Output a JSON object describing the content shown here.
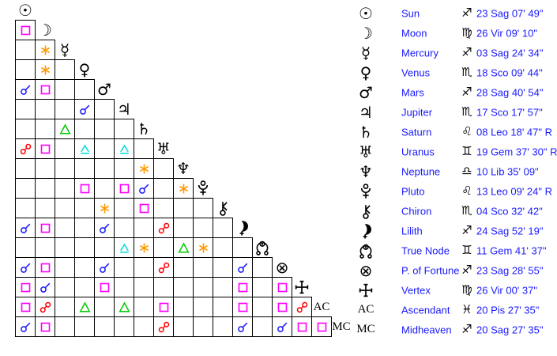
{
  "app": {
    "background": "#ffffff",
    "grid_line_color": "#000000",
    "text_color": "#1a1aff"
  },
  "aspect_types": {
    "conjunction": {
      "color": "#1a1aff"
    },
    "opposition": {
      "color": "#ff0000"
    },
    "square": {
      "color": "#ff00ff"
    },
    "trine": {
      "color": "#00cc00"
    },
    "sextile": {
      "color": "#ff9900"
    },
    "quincunx": {
      "color": "#00dde0"
    }
  },
  "grid": {
    "planets": [
      "sun",
      "moon",
      "mercury",
      "venus",
      "mars",
      "jupiter",
      "saturn",
      "uranus",
      "neptune",
      "pluto",
      "chiron",
      "lilith",
      "true-node",
      "p-of-fortune",
      "vertex",
      "ac",
      "mc"
    ],
    "aspects": [
      {
        "row": 1,
        "col": 0,
        "type": "square"
      },
      {
        "row": 2,
        "col": 1,
        "type": "sextile"
      },
      {
        "row": 3,
        "col": 1,
        "type": "sextile"
      },
      {
        "row": 4,
        "col": 0,
        "type": "conjunction"
      },
      {
        "row": 4,
        "col": 1,
        "type": "square"
      },
      {
        "row": 5,
        "col": 3,
        "type": "conjunction"
      },
      {
        "row": 6,
        "col": 2,
        "type": "trine"
      },
      {
        "row": 7,
        "col": 0,
        "type": "opposition"
      },
      {
        "row": 7,
        "col": 1,
        "type": "square"
      },
      {
        "row": 7,
        "col": 3,
        "type": "quincunx"
      },
      {
        "row": 7,
        "col": 5,
        "type": "quincunx"
      },
      {
        "row": 8,
        "col": 6,
        "type": "sextile"
      },
      {
        "row": 9,
        "col": 3,
        "type": "square"
      },
      {
        "row": 9,
        "col": 5,
        "type": "square"
      },
      {
        "row": 9,
        "col": 6,
        "type": "conjunction"
      },
      {
        "row": 9,
        "col": 8,
        "type": "sextile"
      },
      {
        "row": 10,
        "col": 4,
        "type": "sextile"
      },
      {
        "row": 10,
        "col": 6,
        "type": "square"
      },
      {
        "row": 11,
        "col": 0,
        "type": "conjunction"
      },
      {
        "row": 11,
        "col": 1,
        "type": "square"
      },
      {
        "row": 11,
        "col": 4,
        "type": "conjunction"
      },
      {
        "row": 11,
        "col": 7,
        "type": "opposition"
      },
      {
        "row": 12,
        "col": 5,
        "type": "quincunx"
      },
      {
        "row": 12,
        "col": 6,
        "type": "sextile"
      },
      {
        "row": 12,
        "col": 8,
        "type": "trine"
      },
      {
        "row": 12,
        "col": 9,
        "type": "sextile"
      },
      {
        "row": 13,
        "col": 0,
        "type": "conjunction"
      },
      {
        "row": 13,
        "col": 1,
        "type": "square"
      },
      {
        "row": 13,
        "col": 4,
        "type": "conjunction"
      },
      {
        "row": 13,
        "col": 7,
        "type": "opposition"
      },
      {
        "row": 13,
        "col": 11,
        "type": "conjunction"
      },
      {
        "row": 14,
        "col": 0,
        "type": "square"
      },
      {
        "row": 14,
        "col": 1,
        "type": "conjunction"
      },
      {
        "row": 14,
        "col": 4,
        "type": "square"
      },
      {
        "row": 14,
        "col": 11,
        "type": "square"
      },
      {
        "row": 14,
        "col": 13,
        "type": "square"
      },
      {
        "row": 15,
        "col": 0,
        "type": "square"
      },
      {
        "row": 15,
        "col": 1,
        "type": "opposition"
      },
      {
        "row": 15,
        "col": 3,
        "type": "trine"
      },
      {
        "row": 15,
        "col": 5,
        "type": "trine"
      },
      {
        "row": 15,
        "col": 7,
        "type": "square"
      },
      {
        "row": 15,
        "col": 11,
        "type": "square"
      },
      {
        "row": 15,
        "col": 13,
        "type": "square"
      },
      {
        "row": 15,
        "col": 14,
        "type": "opposition"
      },
      {
        "row": 16,
        "col": 0,
        "type": "conjunction"
      },
      {
        "row": 16,
        "col": 1,
        "type": "square"
      },
      {
        "row": 16,
        "col": 7,
        "type": "opposition"
      },
      {
        "row": 16,
        "col": 11,
        "type": "conjunction"
      },
      {
        "row": 16,
        "col": 13,
        "type": "conjunction"
      },
      {
        "row": 16,
        "col": 14,
        "type": "square"
      },
      {
        "row": 16,
        "col": 15,
        "type": "square"
      }
    ]
  },
  "legend": {
    "rows": [
      {
        "icon": "sun",
        "name": "Sun",
        "sign": "sag",
        "position": "23 Sag 07' 49\""
      },
      {
        "icon": "moon",
        "name": "Moon",
        "sign": "vir",
        "position": "26 Vir 09' 10\""
      },
      {
        "icon": "mercury",
        "name": "Mercury",
        "sign": "sag",
        "position": "03 Sag 24' 34\""
      },
      {
        "icon": "venus",
        "name": "Venus",
        "sign": "sco",
        "position": "18 Sco 09' 44\""
      },
      {
        "icon": "mars",
        "name": "Mars",
        "sign": "sag",
        "position": "28 Sag 40' 54\""
      },
      {
        "icon": "jupiter",
        "name": "Jupiter",
        "sign": "sco",
        "position": "17 Sco 17' 57\""
      },
      {
        "icon": "saturn",
        "name": "Saturn",
        "sign": "leo",
        "position": "08 Leo 18' 47\" R"
      },
      {
        "icon": "uranus",
        "name": "Uranus",
        "sign": "gem",
        "position": "19 Gem 37' 30\" R"
      },
      {
        "icon": "neptune",
        "name": "Neptune",
        "sign": "lib",
        "position": "10 Lib 35' 09\""
      },
      {
        "icon": "pluto",
        "name": "Pluto",
        "sign": "leo",
        "position": "13 Leo 09' 24\" R"
      },
      {
        "icon": "chiron",
        "name": "Chiron",
        "sign": "sco",
        "position": "04 Sco 32' 42\""
      },
      {
        "icon": "lilith",
        "name": "Lilith",
        "sign": "sag",
        "position": "24 Sag 52' 19\""
      },
      {
        "icon": "true-node",
        "name": "True Node",
        "sign": "gem",
        "position": "11 Gem 41' 37\""
      },
      {
        "icon": "p-of-fortune",
        "name": "P. of Fortune",
        "sign": "sag",
        "position": "23 Sag 28' 55\""
      },
      {
        "icon": "vertex",
        "name": "Vertex",
        "sign": "vir",
        "position": "26 Vir 00' 37\""
      },
      {
        "icon": "ac",
        "name": "Ascendant",
        "sign": "pis",
        "position": "20 Pis 27' 35\""
      },
      {
        "icon": "mc",
        "name": "Midheaven",
        "sign": "sag",
        "position": "20 Sag 27' 35\""
      }
    ]
  }
}
